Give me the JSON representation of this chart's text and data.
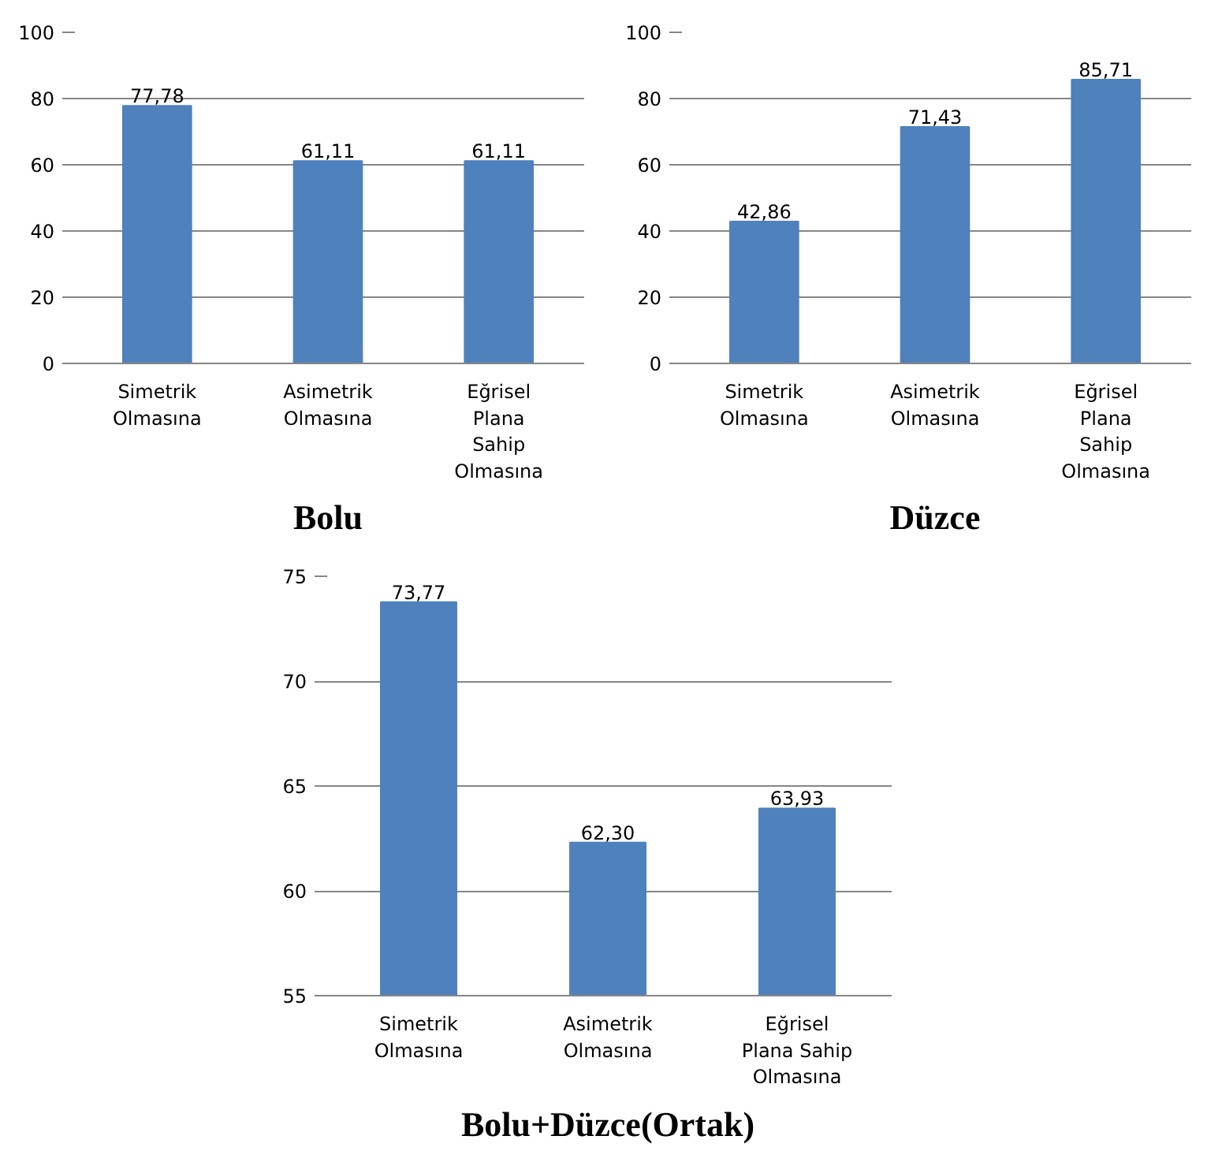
{
  "chart_data": [
    {
      "type": "bar",
      "title": "Bolu",
      "categories": [
        "Simetrik Olmasına",
        "Asimetrik Olmasına",
        "Eğrisel Plana Sahip Olmasına"
      ],
      "values": [
        77.78,
        61.11,
        61.11
      ],
      "value_labels": [
        "77,78",
        "61,11",
        "61,11"
      ],
      "color": "#4f81bd",
      "ylim": [
        0,
        100
      ],
      "yticks": [
        0,
        20,
        40,
        60,
        80,
        100
      ],
      "grid": "y"
    },
    {
      "type": "bar",
      "title": "Düzce",
      "categories": [
        "Simetrik Olmasına",
        "Asimetrik Olmasına",
        "Eğrisel Plana Sahip Olmasına"
      ],
      "values": [
        42.86,
        71.43,
        85.71
      ],
      "value_labels": [
        "42,86",
        "71,43",
        "85,71"
      ],
      "color": "#4f81bd",
      "ylim": [
        0,
        100
      ],
      "yticks": [
        0,
        20,
        40,
        60,
        80,
        100
      ],
      "grid": "y"
    },
    {
      "type": "bar",
      "title": "Bolu+Düzce(Ortak)",
      "categories": [
        "Simetrik Olmasına",
        "Asimetrik Olmasına",
        "Eğrisel Plana Sahip Olmasına"
      ],
      "values": [
        73.77,
        62.3,
        63.93
      ],
      "value_labels": [
        "73,77",
        "62,30",
        "63,93"
      ],
      "color": "#4f81bd",
      "ylim": [
        55,
        75
      ],
      "yticks": [
        55,
        60,
        65,
        70,
        75
      ],
      "grid": "y"
    }
  ]
}
